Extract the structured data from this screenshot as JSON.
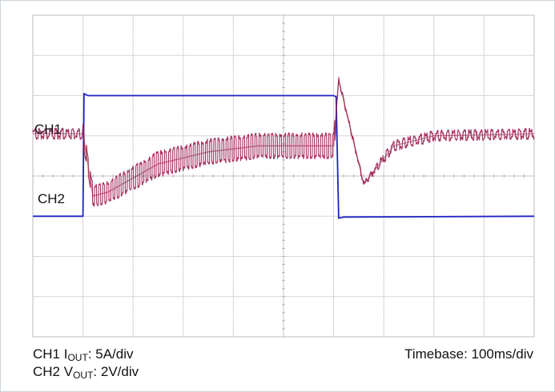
{
  "chart_data": {
    "type": "line",
    "grid": true,
    "divisions": {
      "x": 10,
      "y": 8
    },
    "timebase": "100ms/div",
    "series": [
      {
        "name": "CH1",
        "color": "#1f23c4",
        "baseline_div": 5.0,
        "points": [
          [
            0,
            0
          ],
          [
            1.0,
            0
          ],
          [
            1.02,
            3.05
          ],
          [
            1.1,
            3.0
          ],
          [
            6.0,
            3.0
          ],
          [
            6.05,
            2.97
          ],
          [
            6.1,
            -0.05
          ],
          [
            6.2,
            -0.02
          ],
          [
            10,
            0
          ]
        ]
      },
      {
        "name": "CH2",
        "color": "#9b1c4e",
        "baseline_div": 2.95,
        "envelope": [
          [
            0,
            0
          ],
          [
            1.0,
            0
          ],
          [
            1.2,
            -1.55
          ],
          [
            1.5,
            -1.45
          ],
          [
            2.5,
            -0.75
          ],
          [
            3.5,
            -0.45
          ],
          [
            4.5,
            -0.3
          ],
          [
            6.0,
            -0.3
          ],
          [
            6.1,
            1.35
          ],
          [
            6.6,
            -1.25
          ],
          [
            7.2,
            -0.3
          ],
          [
            8.0,
            -0.05
          ],
          [
            10,
            0
          ]
        ],
        "ripple_div": {
          "early": 0.55,
          "late": 0.5,
          "idle": 0.18
        }
      }
    ]
  },
  "labels": {
    "ch1": "CH1",
    "ch2": "CH2",
    "ch1_scale_prefix": "CH1 I",
    "ch1_scale_sub": "OUT",
    "ch1_scale_value": ": 5A/div",
    "ch2_scale_prefix": "CH2 V",
    "ch2_scale_sub": "OUT",
    "ch2_scale_value": ": 2V/div",
    "timebase_label": "Timebase: 100ms/div"
  }
}
